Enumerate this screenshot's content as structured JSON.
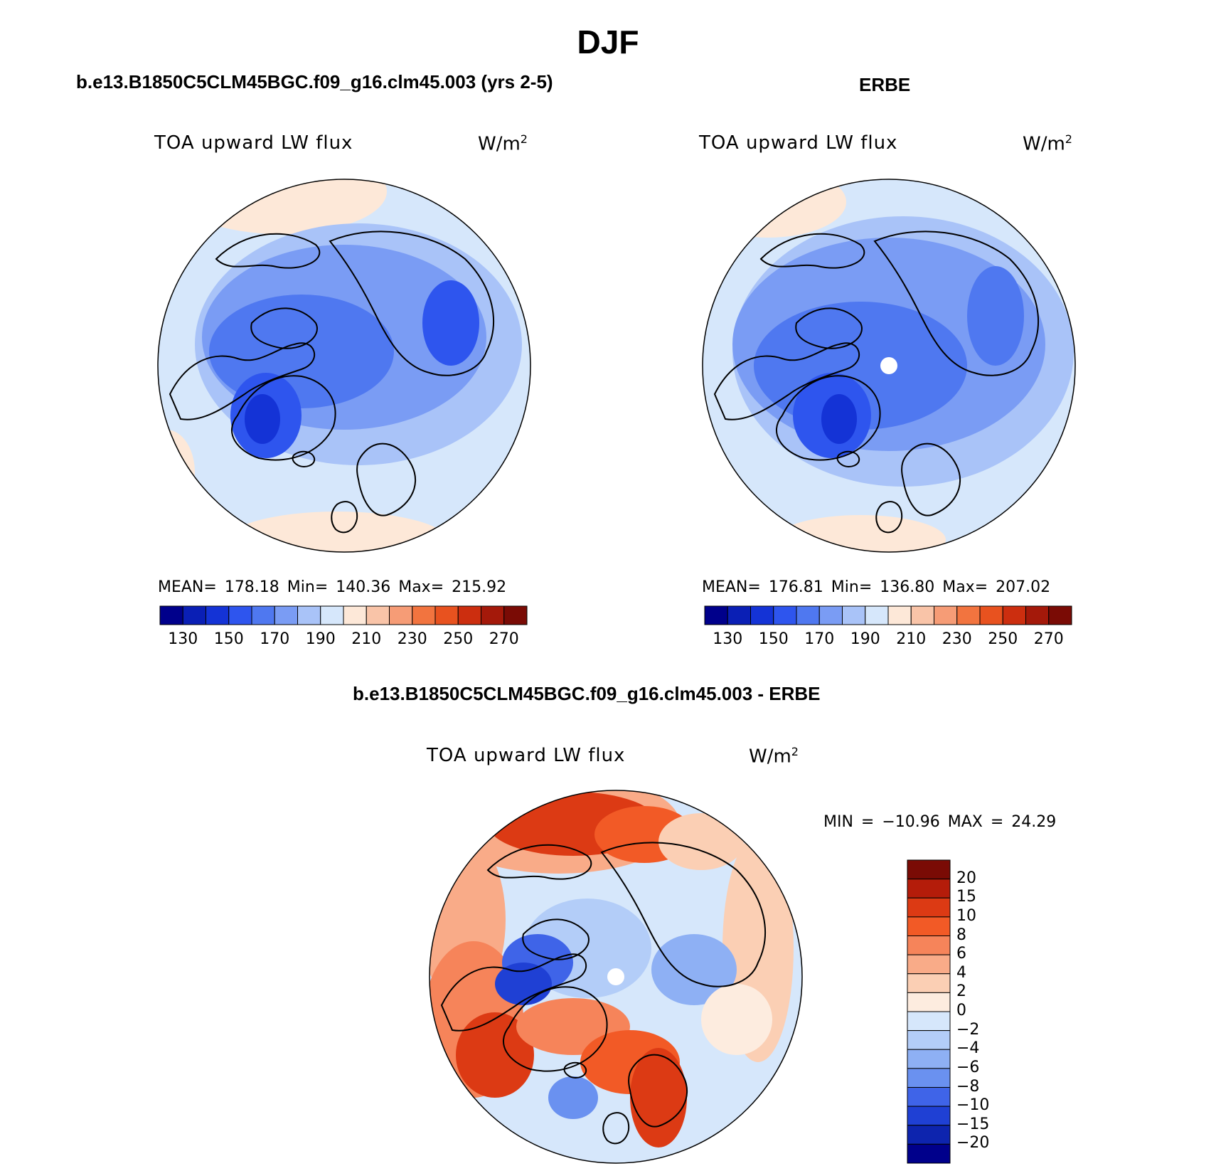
{
  "title": "DJF",
  "panels": [
    {
      "id": "model",
      "title": "b.e13.B1850C5CLM45BGC.f09_g16.clm45.003 (yrs 2-5)",
      "variable": "TOA upward LW flux",
      "units": "W/m",
      "units_sup": "2",
      "stats": "MEAN= 178.18   Min= 140.36   Max= 215.92"
    },
    {
      "id": "obs",
      "title": "ERBE",
      "variable": "TOA upward LW flux",
      "units": "W/m",
      "units_sup": "2",
      "stats": "MEAN= 176.81   Min= 136.80   Max= 207.02"
    },
    {
      "id": "diff",
      "title": "b.e13.B1850C5CLM45BGC.f09_g16.clm45.003 - ERBE",
      "variable": "TOA upward LW flux",
      "units": "W/m",
      "units_sup": "2",
      "stats": "MIN = −10.96 MAX =   24.29"
    }
  ],
  "colorbar_abs": {
    "colors": [
      "#00008b",
      "#0a1fb5",
      "#1433d6",
      "#2e55ee",
      "#4f78f0",
      "#7a9cf4",
      "#a9c3f8",
      "#d6e7fb",
      "#fde8d8",
      "#f9c4a8",
      "#f69c76",
      "#f2743f",
      "#e8521f",
      "#cc2e0f",
      "#a4190a",
      "#7a0b05"
    ],
    "tick_labels": [
      "130",
      "150",
      "170",
      "190",
      "210",
      "230",
      "250",
      "270"
    ]
  },
  "colorbar_diff": {
    "colors": [
      "#7a0b05",
      "#b41c0a",
      "#dc3a14",
      "#f25a26",
      "#f6845a",
      "#f9ab88",
      "#fbcfb4",
      "#fdecdf",
      "#d6e7fb",
      "#b3cdf8",
      "#8eb0f4",
      "#6a91f0",
      "#3f64e8",
      "#1f40d4",
      "#0d24ae",
      "#00008b"
    ],
    "tick_labels": [
      "20",
      "15",
      "10",
      "8",
      "6",
      "4",
      "2",
      "0",
      "−2",
      "−4",
      "−6",
      "−8",
      "−10",
      "−15",
      "−20"
    ]
  }
}
